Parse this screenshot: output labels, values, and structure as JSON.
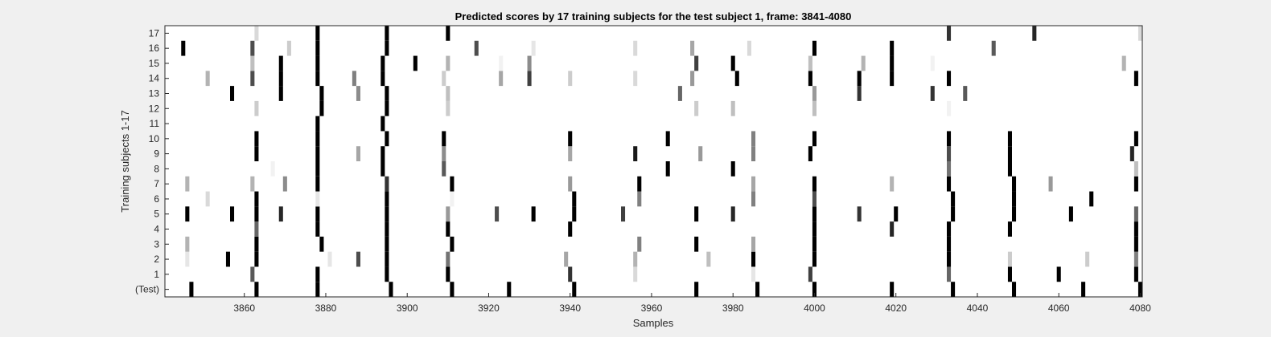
{
  "chart_data": {
    "type": "heatmap",
    "title": "Predicted scores by 17 training subjects for the test subject 1, frame: 3841-4080",
    "xlabel": "Samples",
    "ylabel": "Training subjects 1-17",
    "xlim": [
      3841,
      4080
    ],
    "xticks": [
      3860,
      3880,
      3900,
      3920,
      3940,
      3960,
      3980,
      4000,
      4020,
      4040,
      4060,
      4080
    ],
    "yticklabels": [
      "(Test)",
      "1",
      "2",
      "3",
      "4",
      "5",
      "6",
      "7",
      "8",
      "9",
      "10",
      "11",
      "12",
      "13",
      "14",
      "15",
      "16",
      "17"
    ],
    "colormap": "gray (white = 0, black = 1)",
    "rows": [
      {
        "label": "(Test)",
        "cells": [
          [
            3847,
            1
          ],
          [
            3863,
            1
          ],
          [
            3878,
            1
          ],
          [
            3896,
            1
          ],
          [
            3911,
            1
          ],
          [
            3925,
            1
          ],
          [
            3941,
            1
          ],
          [
            3971,
            1
          ],
          [
            3986,
            1
          ],
          [
            4000,
            1
          ],
          [
            4019,
            1
          ],
          [
            4034,
            1
          ],
          [
            4049,
            1
          ],
          [
            4066,
            1
          ],
          [
            4080,
            1
          ]
        ]
      },
      {
        "label": "1",
        "cells": [
          [
            3862,
            0.65
          ],
          [
            3878,
            1
          ],
          [
            3895,
            1
          ],
          [
            3910,
            1
          ],
          [
            3940,
            0.8
          ],
          [
            3956,
            0.15
          ],
          [
            3985,
            0.1
          ],
          [
            3999,
            0.75
          ],
          [
            4033,
            0.6
          ],
          [
            4048,
            1
          ],
          [
            4060,
            1
          ],
          [
            4079,
            1
          ]
        ]
      },
      {
        "label": "2",
        "cells": [
          [
            3846,
            0.1
          ],
          [
            3856,
            1
          ],
          [
            3863,
            1
          ],
          [
            3881,
            0.1
          ],
          [
            3888,
            0.7
          ],
          [
            3895,
            1
          ],
          [
            3910,
            0.55
          ],
          [
            3939,
            0.35
          ],
          [
            3956,
            0.3
          ],
          [
            3974,
            0.25
          ],
          [
            3985,
            1
          ],
          [
            4000,
            1
          ],
          [
            4033,
            1
          ],
          [
            4048,
            0.2
          ],
          [
            4067,
            0.2
          ],
          [
            4079,
            0.5
          ]
        ]
      },
      {
        "label": "3",
        "cells": [
          [
            3846,
            0.3
          ],
          [
            3863,
            1
          ],
          [
            3879,
            1
          ],
          [
            3895,
            1
          ],
          [
            3911,
            1
          ],
          [
            3957,
            0.5
          ],
          [
            3971,
            1
          ],
          [
            3985,
            0.35
          ],
          [
            4000,
            1
          ],
          [
            4033,
            1
          ],
          [
            4079,
            1
          ]
        ]
      },
      {
        "label": "4",
        "cells": [
          [
            3863,
            0.6
          ],
          [
            3878,
            1
          ],
          [
            3895,
            1
          ],
          [
            3910,
            1
          ],
          [
            3940,
            1
          ],
          [
            4000,
            1
          ],
          [
            4019,
            0.85
          ],
          [
            4033,
            1
          ],
          [
            4048,
            1
          ],
          [
            4079,
            1
          ]
        ]
      },
      {
        "label": "5",
        "cells": [
          [
            3846,
            1
          ],
          [
            3857,
            1
          ],
          [
            3863,
            1
          ],
          [
            3869,
            0.85
          ],
          [
            3878,
            1
          ],
          [
            3895,
            1
          ],
          [
            3910,
            0.4
          ],
          [
            3922,
            0.7
          ],
          [
            3931,
            1
          ],
          [
            3941,
            1
          ],
          [
            3953,
            0.75
          ],
          [
            3971,
            1
          ],
          [
            3980,
            0.85
          ],
          [
            4000,
            1
          ],
          [
            4011,
            0.8
          ],
          [
            4020,
            1
          ],
          [
            4034,
            1
          ],
          [
            4049,
            1
          ],
          [
            4063,
            1
          ],
          [
            4079,
            0.6
          ]
        ]
      },
      {
        "label": "6",
        "cells": [
          [
            3851,
            0.15
          ],
          [
            3863,
            1
          ],
          [
            3878,
            0.1
          ],
          [
            3895,
            1
          ],
          [
            3911,
            0.05
          ],
          [
            3941,
            1
          ],
          [
            3957,
            0.5
          ],
          [
            3985,
            0.5
          ],
          [
            4000,
            0.7
          ],
          [
            4034,
            1
          ],
          [
            4049,
            1
          ],
          [
            4068,
            1
          ]
        ]
      },
      {
        "label": "7",
        "cells": [
          [
            3846,
            0.3
          ],
          [
            3862,
            0.3
          ],
          [
            3870,
            0.45
          ],
          [
            3878,
            1
          ],
          [
            3895,
            0.8
          ],
          [
            3911,
            1
          ],
          [
            3940,
            0.4
          ],
          [
            3957,
            1
          ],
          [
            3985,
            0.35
          ],
          [
            4000,
            1
          ],
          [
            4019,
            0.3
          ],
          [
            4033,
            1
          ],
          [
            4049,
            1
          ],
          [
            4058,
            0.4
          ],
          [
            4079,
            1
          ]
        ]
      },
      {
        "label": "8",
        "cells": [
          [
            3867,
            0.05
          ],
          [
            3878,
            1
          ],
          [
            3894,
            1
          ],
          [
            3909,
            0.65
          ],
          [
            3964,
            1
          ],
          [
            3980,
            1
          ],
          [
            4033,
            0.55
          ],
          [
            4048,
            1
          ],
          [
            4079,
            0.25
          ]
        ]
      },
      {
        "label": "9",
        "cells": [
          [
            3863,
            1
          ],
          [
            3878,
            1
          ],
          [
            3888,
            0.35
          ],
          [
            3894,
            1
          ],
          [
            3909,
            0.45
          ],
          [
            3940,
            0.35
          ],
          [
            3956,
            0.9
          ],
          [
            3972,
            0.4
          ],
          [
            3985,
            0.5
          ],
          [
            3999,
            1
          ],
          [
            4033,
            0.7
          ],
          [
            4048,
            1
          ],
          [
            4078,
            0.85
          ]
        ]
      },
      {
        "label": "10",
        "cells": [
          [
            3863,
            1
          ],
          [
            3878,
            1
          ],
          [
            3895,
            1
          ],
          [
            3909,
            1
          ],
          [
            3940,
            1
          ],
          [
            3964,
            1
          ],
          [
            3985,
            0.5
          ],
          [
            4000,
            1
          ],
          [
            4033,
            1
          ],
          [
            4048,
            1
          ],
          [
            4079,
            1
          ]
        ]
      },
      {
        "label": "11",
        "cells": [
          [
            3878,
            1
          ],
          [
            3894,
            1
          ]
        ]
      },
      {
        "label": "12",
        "cells": [
          [
            3863,
            0.2
          ],
          [
            3879,
            1
          ],
          [
            3895,
            1
          ],
          [
            3910,
            0.2
          ],
          [
            3971,
            0.2
          ],
          [
            3980,
            0.25
          ],
          [
            4000,
            0.25
          ],
          [
            4033,
            0.05
          ]
        ]
      },
      {
        "label": "13",
        "cells": [
          [
            3857,
            1
          ],
          [
            3869,
            1
          ],
          [
            3879,
            1
          ],
          [
            3888,
            0.45
          ],
          [
            3895,
            1
          ],
          [
            3910,
            0.25
          ],
          [
            3967,
            0.6
          ],
          [
            4000,
            0.4
          ],
          [
            4011,
            0.8
          ],
          [
            4029,
            0.8
          ],
          [
            4037,
            0.65
          ]
        ]
      },
      {
        "label": "14",
        "cells": [
          [
            3851,
            0.3
          ],
          [
            3862,
            0.7
          ],
          [
            3869,
            1
          ],
          [
            3878,
            1
          ],
          [
            3887,
            0.5
          ],
          [
            3894,
            1
          ],
          [
            3909,
            0.2
          ],
          [
            3923,
            0.35
          ],
          [
            3930,
            0.75
          ],
          [
            3940,
            0.2
          ],
          [
            3956,
            0.15
          ],
          [
            3970,
            0.4
          ],
          [
            3981,
            1
          ],
          [
            3999,
            1
          ],
          [
            4011,
            1
          ],
          [
            4019,
            1
          ],
          [
            4033,
            1
          ],
          [
            4079,
            1
          ]
        ]
      },
      {
        "label": "15",
        "cells": [
          [
            3862,
            0.25
          ],
          [
            3869,
            1
          ],
          [
            3878,
            1
          ],
          [
            3894,
            1
          ],
          [
            3902,
            1
          ],
          [
            3910,
            0.3
          ],
          [
            3923,
            0.05
          ],
          [
            3930,
            0.45
          ],
          [
            3971,
            0.75
          ],
          [
            3980,
            1
          ],
          [
            3999,
            0.25
          ],
          [
            4012,
            0.3
          ],
          [
            4019,
            1
          ],
          [
            4029,
            0.05
          ],
          [
            4076,
            0.3
          ]
        ]
      },
      {
        "label": "16",
        "cells": [
          [
            3845,
            1
          ],
          [
            3862,
            0.7
          ],
          [
            3871,
            0.2
          ],
          [
            3878,
            1
          ],
          [
            3895,
            1
          ],
          [
            3917,
            0.7
          ],
          [
            3931,
            0.1
          ],
          [
            3956,
            0.15
          ],
          [
            3970,
            0.35
          ],
          [
            3984,
            0.15
          ],
          [
            4000,
            1
          ],
          [
            4019,
            1
          ],
          [
            4044,
            0.65
          ]
        ]
      },
      {
        "label": "17",
        "cells": [
          [
            3863,
            0.15
          ],
          [
            3878,
            1
          ],
          [
            3895,
            1
          ],
          [
            3910,
            1
          ],
          [
            4033,
            0.8
          ],
          [
            4054,
            0.85
          ],
          [
            4080,
            0.15
          ]
        ]
      }
    ]
  }
}
